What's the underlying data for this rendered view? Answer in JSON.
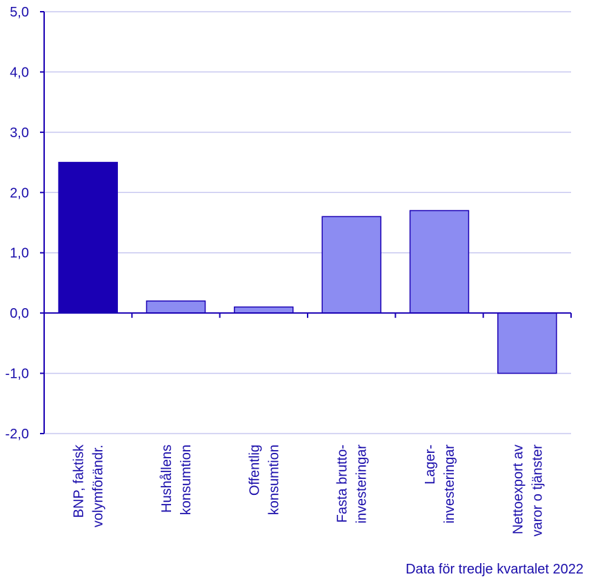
{
  "chart_data": {
    "type": "bar",
    "categories": [
      [
        "BNP, faktisk",
        "volymförändr."
      ],
      [
        "Hushållens",
        "konsumtion"
      ],
      [
        "Offentlig",
        "konsumtion"
      ],
      [
        "Fasta brutto-",
        "investeringar"
      ],
      [
        "Lager-",
        "investeringar"
      ],
      [
        "Nettoexport av",
        "varor o tjänster"
      ]
    ],
    "values": [
      2.5,
      0.2,
      0.1,
      1.6,
      1.7,
      -1.0
    ],
    "ylim": [
      -2.0,
      5.0
    ],
    "yticks": [
      "-2,0",
      "-1,0",
      "0,0",
      "1,0",
      "2,0",
      "3,0",
      "4,0",
      "5,0"
    ],
    "ytick_values": [
      -2,
      -1,
      0,
      1,
      2,
      3,
      4,
      5
    ],
    "grid": true,
    "colors": {
      "highlight": "#1a00b4",
      "bar": "#8c8cf2",
      "stroke": "#1a00b4",
      "axis": "#1a00b4",
      "grid": "#c8c8f0"
    }
  },
  "footnote": "Data för tredje kvartalet 2022"
}
